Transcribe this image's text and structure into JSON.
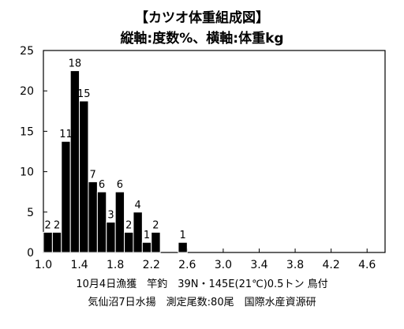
{
  "chart_data": {
    "type": "bar",
    "title": "【カツオ体重組成図】",
    "subtitle": "縦軸:度数%、横軸:体重kg",
    "x_tick_labels": [
      "1.0",
      "1.4",
      "1.8",
      "2.2",
      "2.6",
      "3.0",
      "3.4",
      "3.8",
      "4.2",
      "4.6"
    ],
    "x_range": [
      1.0,
      4.8
    ],
    "bin_width": 0.1,
    "bars": [
      {
        "x": 1.0,
        "value": 2.5,
        "count": "2"
      },
      {
        "x": 1.1,
        "value": 2.5,
        "count": "2"
      },
      {
        "x": 1.2,
        "value": 13.75,
        "count": "11"
      },
      {
        "x": 1.3,
        "value": 22.5,
        "count": "18"
      },
      {
        "x": 1.4,
        "value": 18.75,
        "count": "15"
      },
      {
        "x": 1.5,
        "value": 8.75,
        "count": "7"
      },
      {
        "x": 1.6,
        "value": 7.5,
        "count": "6"
      },
      {
        "x": 1.7,
        "value": 3.75,
        "count": "3"
      },
      {
        "x": 1.8,
        "value": 7.5,
        "count": "6"
      },
      {
        "x": 1.9,
        "value": 2.5,
        "count": "2"
      },
      {
        "x": 2.0,
        "value": 5.0,
        "count": "4"
      },
      {
        "x": 2.1,
        "value": 1.25,
        "count": "1"
      },
      {
        "x": 2.2,
        "value": 2.5,
        "count": "2"
      },
      {
        "x": 2.5,
        "value": 1.25,
        "count": "1"
      }
    ],
    "y_ticks": [
      0,
      5,
      10,
      15,
      20,
      25
    ],
    "ylim": [
      0,
      25
    ],
    "grid": false,
    "bar_color": "#000000"
  },
  "notes": {
    "line1": "10月4日漁獲　竿釣　39N・145E(21℃)0.5トン 鳥付",
    "line2": "気仙沼7日水揚　測定尾数:80尾　国際水産資源研"
  }
}
